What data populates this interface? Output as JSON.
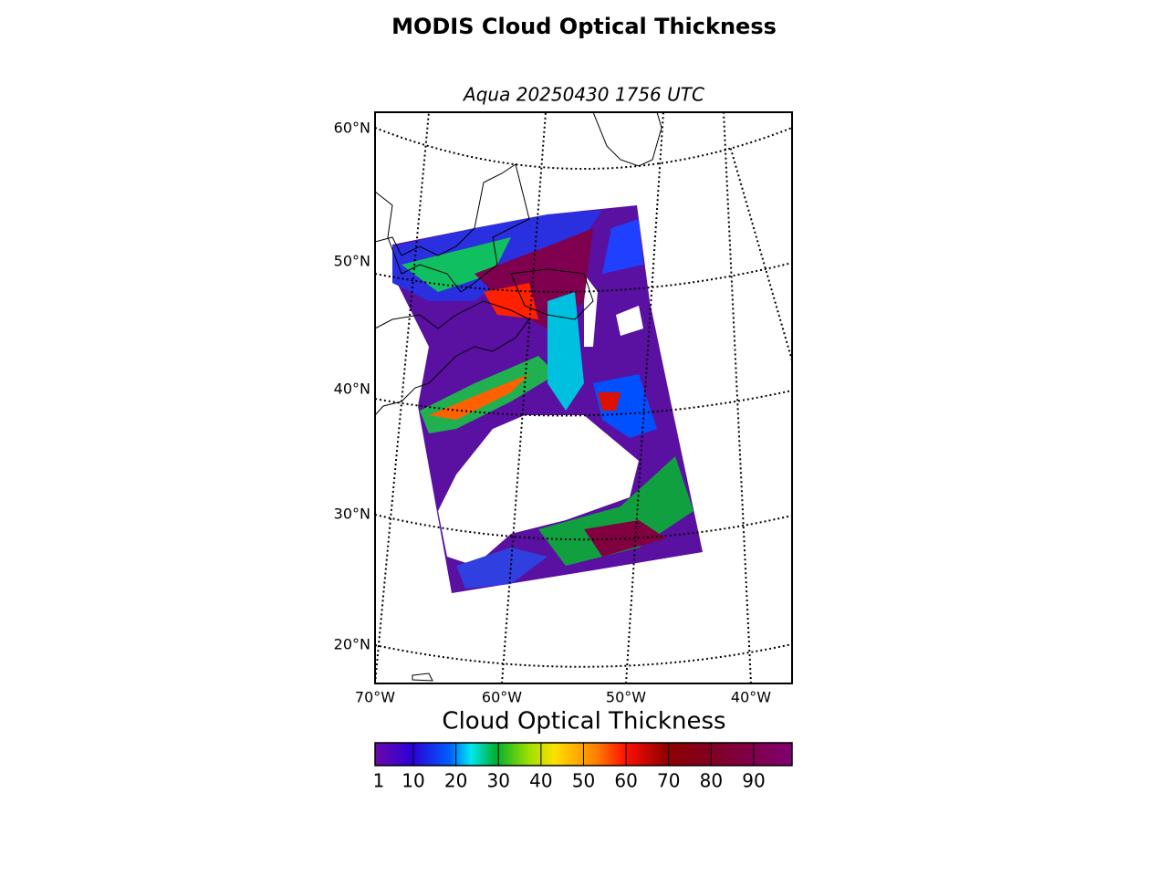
{
  "title": "MODIS Cloud Optical Thickness",
  "subtitle": "Aqua 20250430 1756 UTC",
  "map": {
    "lat_labels": [
      "60°N",
      "50°N",
      "40°N",
      "30°N",
      "20°N"
    ],
    "lon_labels": [
      "70°W",
      "60°W",
      "50°W",
      "40°W"
    ]
  },
  "colorbar": {
    "label": "Cloud Optical Thickness",
    "range": [
      1,
      99
    ],
    "ticks": [
      1,
      10,
      20,
      30,
      40,
      50,
      60,
      70,
      80,
      90
    ]
  }
}
